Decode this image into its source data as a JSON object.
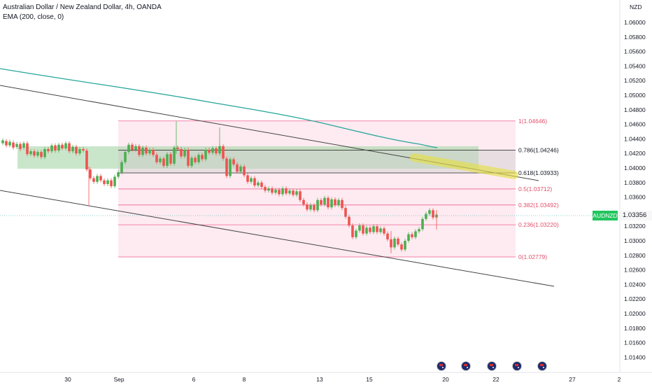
{
  "legend": {
    "title": "Australian Dollar / New Zealand Dollar, 4h, OANDA",
    "indicator": "EMA (200, close, 0)"
  },
  "price_axis": {
    "currency": "NZD",
    "labels": [
      "1.06000",
      "1.05800",
      "1.05600",
      "1.05400",
      "1.05200",
      "1.05000",
      "1.04800",
      "1.04600",
      "1.04400",
      "1.04200",
      "1.04000",
      "1.03800",
      "1.03600",
      "1.03200",
      "1.03000",
      "1.02800",
      "1.02600",
      "1.02400",
      "1.02200",
      "1.02000",
      "1.01800",
      "1.01600",
      "1.01400"
    ]
  },
  "time_axis": {
    "labels": [
      "30",
      "Sep",
      "6",
      "8",
      "13",
      "15",
      "20",
      "22",
      "27",
      "2"
    ]
  },
  "current_price": {
    "symbol": "AUDNZD",
    "value": "1.03356"
  },
  "fib_levels": [
    {
      "label": "1(1.04646)",
      "price": 1.04646
    },
    {
      "label": "0.786(1.04246)",
      "price": 1.04246
    },
    {
      "label": "0.618(1.03933)",
      "price": 1.03933
    },
    {
      "label": "0.5(1.03712)",
      "price": 1.03712
    },
    {
      "label": "0.382(1.03492)",
      "price": 1.03492
    },
    {
      "label": "0.236(1.03220)",
      "price": 1.0322
    },
    {
      "label": "0(1.02779)",
      "price": 1.02779
    }
  ],
  "colors": {
    "up": "#26a69a",
    "up_candle": "#4caf50",
    "down": "#ef5350",
    "ema": "#26a69a",
    "fib_line": "#f06292",
    "fib_fill": "#fce4ec",
    "zone": "#a5d6a7",
    "highlight": "#e6e04a"
  },
  "event_icons": [
    "flag-icon",
    "flag-icon",
    "flag-icon",
    "flag-icon",
    "flag-icon"
  ]
}
